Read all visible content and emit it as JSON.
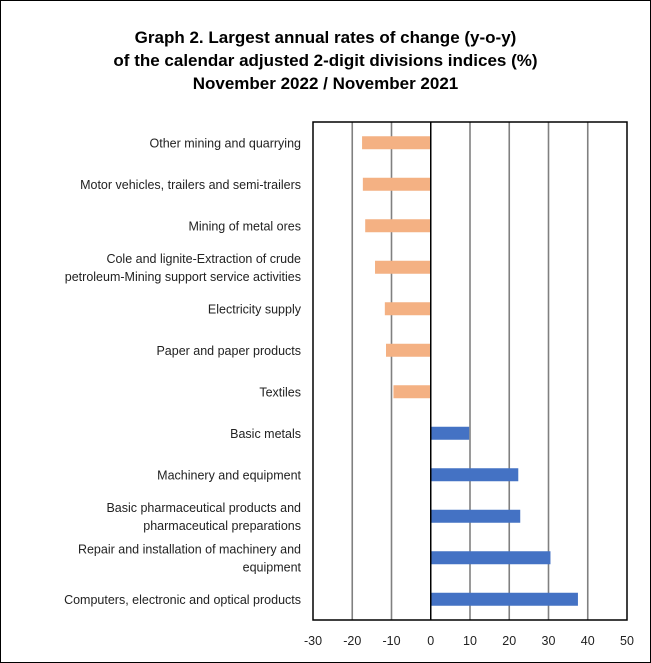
{
  "chart_data": {
    "type": "bar",
    "orientation": "horizontal",
    "title_lines": [
      "Graph 2. Largest annual rates of change (y-o-y)",
      "of the calendar adjusted 2-digit divisions indices (%)",
      "November 2022 / November 2021"
    ],
    "categories": [
      {
        "lines": [
          "Other mining and quarrying"
        ],
        "value": -17.5
      },
      {
        "lines": [
          "Motor vehicles, trailers and semi-trailers"
        ],
        "value": -17.3
      },
      {
        "lines": [
          "Mining of metal ores"
        ],
        "value": -16.7
      },
      {
        "lines": [
          "Cole and lignite-Extraction of crude",
          "petroleum-Mining support service activities"
        ],
        "value": -14.2
      },
      {
        "lines": [
          "Electricity supply"
        ],
        "value": -11.7
      },
      {
        "lines": [
          "Paper and paper products"
        ],
        "value": -11.4
      },
      {
        "lines": [
          "Textiles"
        ],
        "value": -9.5
      },
      {
        "lines": [
          "Basic metals"
        ],
        "value": 9.8
      },
      {
        "lines": [
          "Machinery and equipment"
        ],
        "value": 22.3
      },
      {
        "lines": [
          "Basic pharmaceutical products and",
          "pharmaceutical preparations"
        ],
        "value": 22.8
      },
      {
        "lines": [
          "Repair and installation of machinery and",
          "equipment"
        ],
        "value": 30.5
      },
      {
        "lines": [
          "Computers, electronic and optical products"
        ],
        "value": 37.5
      }
    ],
    "x_ticks": [
      -30,
      -20,
      -10,
      0,
      10,
      20,
      30,
      40,
      50
    ],
    "xlim": [
      -30,
      50
    ],
    "grid": "vertical",
    "colors": {
      "negative": "#F4B183",
      "positive": "#4472C4",
      "grid": "#808080",
      "axis": "#000000"
    }
  }
}
